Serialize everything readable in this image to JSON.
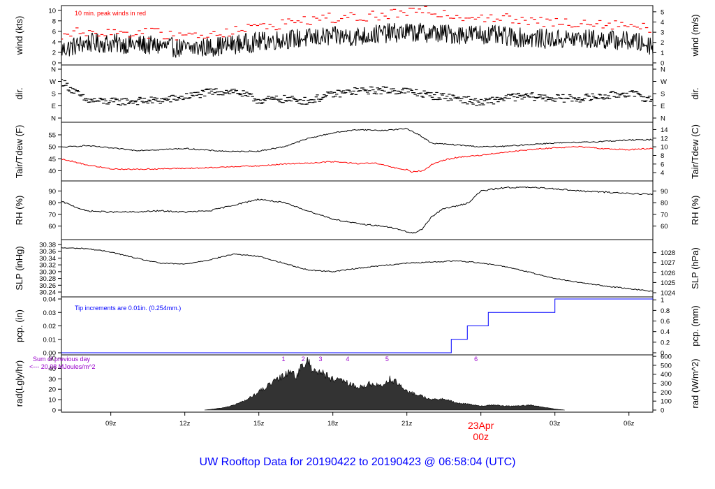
{
  "chart_data": {
    "type": "line",
    "title": "UW Rooftop Data for 20190422  to  20190423 @ 06:58:04  (UTC)",
    "x_axis": {
      "ticks": [
        "09z",
        "12z",
        "15z",
        "18z",
        "21z",
        "00z",
        "03z",
        "06z"
      ],
      "tick_hours": [
        9,
        12,
        15,
        18,
        21,
        24,
        27,
        30
      ],
      "start_hour": 7.0,
      "end_hour": 30.97,
      "date_label": "23Apr",
      "date_label_hour": 24,
      "date_color": "#ff0000"
    },
    "panels": [
      {
        "id": "wind",
        "left_label": "wind (kts)",
        "right_label": "wind (m/s)",
        "left_ticks": [
          0,
          2,
          4,
          6,
          8,
          10
        ],
        "left_range": [
          0,
          10.5
        ],
        "right_ticks": [
          0,
          1,
          2,
          3,
          4,
          5
        ],
        "right_ticks_at_left": [
          0,
          1.944,
          3.888,
          5.832,
          7.776,
          9.72
        ],
        "annotation": "10 min. peak winds in red",
        "annotation_color": "#ff0000",
        "series": [
          {
            "name": "wind speed",
            "color": "#000000",
            "hours": [
              7,
              8,
              9,
              10,
              11,
              12,
              13,
              14,
              15,
              16,
              17,
              18,
              19,
              20,
              21,
              22,
              23,
              24,
              25,
              26,
              27,
              28,
              29,
              30,
              31
            ],
            "values": [
              2.5,
              3.8,
              3.7,
              3.5,
              3.2,
              2.7,
              3.0,
              3.5,
              4.0,
              4.5,
              4.7,
              5.0,
              5.0,
              5.6,
              5.8,
              5.7,
              5.4,
              5.5,
              5.0,
              4.7,
              4.5,
              4.6,
              4.4,
              4.2,
              3.3
            ]
          },
          {
            "name": "peak wind",
            "color": "#ff0000",
            "style": "dash",
            "hours": [
              7,
              8,
              9,
              10,
              11,
              12,
              13,
              14,
              15,
              16,
              17,
              18,
              19,
              20,
              21,
              22,
              23,
              24,
              25,
              26,
              27,
              28,
              29,
              30,
              31
            ],
            "values": [
              5.2,
              6.0,
              5.8,
              5.8,
              5.5,
              5.2,
              5.5,
              6.2,
              6.8,
              7.5,
              8.2,
              8.5,
              8.6,
              9.0,
              9.5,
              9.8,
              9.0,
              8.8,
              8.4,
              7.8,
              7.6,
              7.8,
              7.5,
              7.3,
              6.2
            ]
          }
        ]
      },
      {
        "id": "dir",
        "left_label": "dir.",
        "right_label": "dir.",
        "left_ticks": [
          "N",
          "E",
          "S",
          "W",
          "N"
        ],
        "left_ticks_at": [
          0,
          90,
          180,
          270,
          360
        ],
        "right_ticks": [
          "N",
          "E",
          "S",
          "W",
          "N"
        ],
        "right_ticks_at": [
          0,
          90,
          180,
          270,
          360
        ],
        "range": [
          0,
          360
        ],
        "series": [
          {
            "name": "wind direction",
            "color": "#000000",
            "style": "dash",
            "hours": [
              7,
              8,
              9,
              10,
              11,
              12,
              13,
              14,
              15,
              16,
              17,
              18,
              19,
              20,
              21,
              22,
              23,
              24,
              25,
              26,
              27,
              28,
              29,
              30,
              31
            ],
            "values": [
              270,
              130,
              120,
              125,
              130,
              155,
              190,
              200,
              130,
              140,
              125,
              175,
              200,
              205,
              200,
              165,
              150,
              110,
              150,
              160,
              145,
              145,
              160,
              185,
              130
            ]
          }
        ]
      },
      {
        "id": "temp",
        "left_label": "Tair/Tdew (F)",
        "right_label": "Tair/Tdew (C)",
        "left_ticks": [
          40,
          45,
          50,
          55
        ],
        "left_range": [
          37.5,
          58.5
        ],
        "right_ticks": [
          4,
          6,
          8,
          10,
          12,
          14
        ],
        "right_ticks_at_left": [
          39.2,
          42.8,
          46.4,
          50,
          53.6,
          57.2
        ],
        "series": [
          {
            "name": "Tair",
            "color": "#000000",
            "hours": [
              7,
              8,
              9,
              10,
              11,
              12,
              13,
              14,
              15,
              16,
              17,
              18,
              19,
              20,
              21,
              21.5,
              22,
              23,
              24,
              25,
              26,
              27,
              28,
              29,
              30,
              31
            ],
            "values": [
              49.8,
              50.5,
              49.5,
              48.5,
              48.8,
              49.3,
              48.5,
              48.0,
              48.2,
              50.0,
              53.5,
              55.8,
              57.2,
              56.8,
              57.6,
              55.0,
              51.5,
              50.8,
              50.0,
              50.2,
              51.0,
              51.6,
              51.8,
              52.3,
              52.8,
              53.0
            ]
          },
          {
            "name": "Tdew",
            "color": "#ff0000",
            "hours": [
              7,
              8,
              9,
              10,
              11,
              12,
              13,
              14,
              15,
              16,
              17,
              18,
              19,
              19.7,
              20.4,
              20.8,
              21,
              21.2,
              21.4,
              21.7,
              22,
              22.5,
              23,
              24,
              25,
              26,
              27,
              28,
              29,
              30,
              31
            ],
            "values": [
              45.0,
              42.5,
              40.8,
              40.6,
              40.8,
              41.0,
              41.2,
              41.8,
              42.0,
              42.8,
              43.2,
              43.8,
              43.0,
              43.2,
              41.5,
              40.5,
              40.5,
              39.5,
              39.8,
              40.0,
              42.5,
              44.5,
              45.5,
              46.5,
              47.8,
              48.8,
              49.6,
              50.0,
              49.2,
              48.8,
              49.3
            ]
          }
        ]
      },
      {
        "id": "rh",
        "left_label": "RH (%)",
        "right_label": "RH (%)",
        "left_ticks": [
          60,
          70,
          80,
          90
        ],
        "left_range": [
          52,
          95
        ],
        "right_ticks": [
          60,
          70,
          80,
          90
        ],
        "right_ticks_at_left": [
          60,
          70,
          80,
          90
        ],
        "series": [
          {
            "name": "RH",
            "color": "#000000",
            "hours": [
              7,
              8,
              9,
              10,
              11,
              12,
              13,
              14,
              15,
              16,
              17,
              18,
              19,
              20,
              20.5,
              21,
              21.3,
              21.6,
              22,
              22.5,
              23,
              23.5,
              24,
              25,
              26,
              27,
              28,
              29,
              30,
              31
            ],
            "values": [
              81,
              73,
              72,
              72,
              73,
              72,
              73,
              78,
              83,
              80,
              73,
              66,
              62,
              60,
              58,
              55,
              54,
              57,
              68,
              75,
              77,
              80,
              90,
              93,
              93,
              92,
              90,
              89,
              88,
              87
            ]
          }
        ]
      },
      {
        "id": "slp",
        "left_label": "SLP (inHg)",
        "right_label": "SLP (hPa)",
        "left_ticks": [
          "30.24",
          "30.26",
          "30.28",
          "30.30",
          "30.32",
          "30.34",
          "30.36",
          "30.38"
        ],
        "left_ticks_at": [
          30.24,
          30.26,
          30.28,
          30.3,
          30.32,
          30.34,
          30.36,
          30.38
        ],
        "left_range": [
          30.238,
          30.382
        ],
        "right_ticks": [
          1024,
          1025,
          1026,
          1027,
          1028
        ],
        "right_ticks_at_left": [
          30.238,
          30.268,
          30.297,
          30.327,
          30.356
        ],
        "series": [
          {
            "name": "SLP",
            "color": "#000000",
            "hours": [
              7,
              8,
              9,
              10,
              11,
              12,
              13,
              14,
              15,
              16,
              17,
              18,
              19,
              20,
              21,
              22,
              23,
              24,
              25,
              26,
              27,
              28,
              29,
              30,
              31
            ],
            "values": [
              30.37,
              30.368,
              30.358,
              30.34,
              30.325,
              30.322,
              30.335,
              30.352,
              30.345,
              30.325,
              30.305,
              30.3,
              30.31,
              30.318,
              30.325,
              30.328,
              30.332,
              30.326,
              30.315,
              30.298,
              30.28,
              30.268,
              30.258,
              30.25,
              30.242
            ]
          }
        ]
      },
      {
        "id": "pcp",
        "left_label": "pcp. (in)",
        "right_label": "pcp. (mm)",
        "left_ticks": [
          "0.00",
          "0.01",
          "0.02",
          "0.03",
          "0.04"
        ],
        "left_ticks_at": [
          0,
          0.01,
          0.02,
          0.03,
          0.04
        ],
        "left_range": [
          0,
          0.04
        ],
        "right_ticks": [
          "0",
          "0.2",
          "0.4",
          "0.6",
          "0.8",
          "1"
        ],
        "right_ticks_at_left": [
          0,
          0.007874,
          0.015748,
          0.023622,
          0.031496,
          0.03937
        ],
        "annotation": "Tip increments are 0.01in. (0.254mm.)",
        "annotation_color": "#0000ff",
        "series": [
          {
            "name": "precipitation",
            "color": "#0000ff",
            "style": "step",
            "hours": [
              7,
              22.8,
              23.45,
              24.3,
              27.0,
              31.0
            ],
            "values": [
              0,
              0.01,
              0.02,
              0.03,
              0.04,
              0.04
            ]
          }
        ]
      },
      {
        "id": "rad",
        "left_label": "rad(Lgly/hr)",
        "right_label": "rad (W/m^2)",
        "left_ticks": [
          0,
          10,
          20,
          30,
          40,
          50
        ],
        "left_range": [
          0,
          51
        ],
        "right_ticks": [
          0,
          100,
          200,
          300,
          400,
          500,
          600
        ],
        "right_ticks_at_left": [
          0,
          8.6,
          17.2,
          25.8,
          34.4,
          43.0,
          51.6
        ],
        "annotation": "Sum of previous day",
        "annotation2": "<--- 20.08 MJoules/m^2",
        "annotation_color": "#9900cc",
        "markers": [
          "1",
          "2",
          "3",
          "4",
          "5",
          "6"
        ],
        "marker_hours": [
          16.0,
          16.8,
          17.5,
          18.6,
          20.2,
          23.8
        ],
        "marker_color": "#9900cc",
        "series": [
          {
            "name": "radiation",
            "color": "#000000",
            "style": "filled",
            "hours": [
              12.8,
              13.5,
              14.0,
              14.5,
              15.0,
              15.5,
              16.0,
              16.3,
              16.5,
              16.8,
              17.0,
              17.2,
              17.5,
              18.0,
              18.5,
              19.0,
              19.5,
              20.0,
              20.3,
              20.6,
              21.0,
              21.5,
              22.0,
              22.5,
              23.0,
              23.5,
              24.0,
              24.5,
              25.0,
              25.5,
              26.0,
              26.5,
              27.0,
              27.4
            ],
            "values": [
              0,
              2,
              5,
              10,
              18,
              26,
              34,
              40,
              33,
              45,
              48,
              40,
              38,
              30,
              28,
              22,
              26,
              24,
              31,
              27,
              18,
              15,
              10,
              11,
              7,
              6,
              4,
              5,
              4,
              4,
              5,
              3,
              1,
              0
            ]
          }
        ]
      }
    ]
  }
}
